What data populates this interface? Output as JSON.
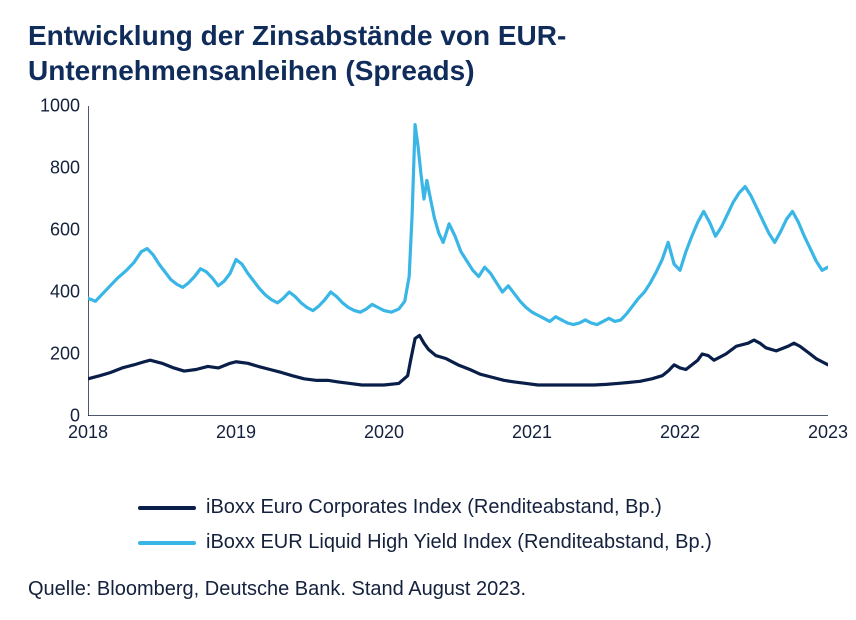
{
  "title": "Entwicklung der Zinsabstände von EUR-Unternehmensanleihen (Spreads)",
  "source": "Quelle: Bloomberg, Deutsche Bank. Stand August 2023.",
  "chart": {
    "type": "line",
    "background_color": "#ffffff",
    "axis_color": "#14213d",
    "title_color": "#0f2c5a",
    "title_fontsize": 28,
    "label_fontsize": 18,
    "legend_fontsize": 20,
    "x": {
      "min": 2018,
      "max": 2023,
      "ticks": [
        2018,
        2019,
        2020,
        2021,
        2022,
        2023
      ]
    },
    "y": {
      "min": 0,
      "max": 1000,
      "ticks": [
        0,
        200,
        400,
        600,
        800,
        1000
      ]
    },
    "series": [
      {
        "name": "iBoxx Euro Corporates Index (Renditeabstand, Bp.)",
        "color": "#0a1e4a",
        "stroke_width": 3.2,
        "data": [
          [
            2018.0,
            120
          ],
          [
            2018.08,
            130
          ],
          [
            2018.15,
            140
          ],
          [
            2018.23,
            155
          ],
          [
            2018.31,
            165
          ],
          [
            2018.38,
            175
          ],
          [
            2018.42,
            180
          ],
          [
            2018.5,
            170
          ],
          [
            2018.58,
            155
          ],
          [
            2018.65,
            145
          ],
          [
            2018.73,
            150
          ],
          [
            2018.81,
            160
          ],
          [
            2018.88,
            155
          ],
          [
            2018.96,
            170
          ],
          [
            2019.0,
            175
          ],
          [
            2019.08,
            170
          ],
          [
            2019.15,
            160
          ],
          [
            2019.23,
            150
          ],
          [
            2019.31,
            140
          ],
          [
            2019.38,
            130
          ],
          [
            2019.46,
            120
          ],
          [
            2019.54,
            115
          ],
          [
            2019.62,
            115
          ],
          [
            2019.69,
            110
          ],
          [
            2019.77,
            105
          ],
          [
            2019.85,
            100
          ],
          [
            2019.92,
            100
          ],
          [
            2020.0,
            100
          ],
          [
            2020.1,
            105
          ],
          [
            2020.16,
            130
          ],
          [
            2020.18,
            180
          ],
          [
            2020.21,
            250
          ],
          [
            2020.24,
            260
          ],
          [
            2020.27,
            235
          ],
          [
            2020.3,
            215
          ],
          [
            2020.35,
            195
          ],
          [
            2020.42,
            185
          ],
          [
            2020.5,
            165
          ],
          [
            2020.58,
            150
          ],
          [
            2020.65,
            135
          ],
          [
            2020.73,
            125
          ],
          [
            2020.81,
            115
          ],
          [
            2020.88,
            110
          ],
          [
            2020.96,
            105
          ],
          [
            2021.04,
            100
          ],
          [
            2021.12,
            100
          ],
          [
            2021.19,
            100
          ],
          [
            2021.27,
            100
          ],
          [
            2021.35,
            100
          ],
          [
            2021.42,
            100
          ],
          [
            2021.5,
            102
          ],
          [
            2021.58,
            105
          ],
          [
            2021.65,
            108
          ],
          [
            2021.73,
            112
          ],
          [
            2021.81,
            120
          ],
          [
            2021.88,
            130
          ],
          [
            2021.92,
            145
          ],
          [
            2021.96,
            165
          ],
          [
            2022.0,
            155
          ],
          [
            2022.04,
            150
          ],
          [
            2022.12,
            180
          ],
          [
            2022.15,
            200
          ],
          [
            2022.19,
            195
          ],
          [
            2022.23,
            180
          ],
          [
            2022.31,
            200
          ],
          [
            2022.38,
            225
          ],
          [
            2022.46,
            235
          ],
          [
            2022.5,
            245
          ],
          [
            2022.54,
            235
          ],
          [
            2022.58,
            220
          ],
          [
            2022.65,
            210
          ],
          [
            2022.73,
            225
          ],
          [
            2022.77,
            235
          ],
          [
            2022.81,
            225
          ],
          [
            2022.88,
            200
          ],
          [
            2022.92,
            185
          ],
          [
            2022.96,
            175
          ],
          [
            2023.0,
            165
          ]
        ]
      },
      {
        "name": "iBoxx EUR Liquid High Yield Index (Renditeabstand, Bp.)",
        "color": "#39b6e6",
        "stroke_width": 3.2,
        "data": [
          [
            2018.0,
            380
          ],
          [
            2018.05,
            370
          ],
          [
            2018.1,
            395
          ],
          [
            2018.15,
            420
          ],
          [
            2018.2,
            445
          ],
          [
            2018.26,
            470
          ],
          [
            2018.31,
            495
          ],
          [
            2018.36,
            530
          ],
          [
            2018.4,
            540
          ],
          [
            2018.44,
            520
          ],
          [
            2018.48,
            490
          ],
          [
            2018.52,
            465
          ],
          [
            2018.56,
            440
          ],
          [
            2018.6,
            425
          ],
          [
            2018.64,
            415
          ],
          [
            2018.68,
            430
          ],
          [
            2018.72,
            450
          ],
          [
            2018.76,
            475
          ],
          [
            2018.8,
            465
          ],
          [
            2018.84,
            445
          ],
          [
            2018.88,
            420
          ],
          [
            2018.92,
            435
          ],
          [
            2018.96,
            460
          ],
          [
            2019.0,
            505
          ],
          [
            2019.04,
            490
          ],
          [
            2019.08,
            460
          ],
          [
            2019.12,
            435
          ],
          [
            2019.16,
            410
          ],
          [
            2019.2,
            390
          ],
          [
            2019.24,
            375
          ],
          [
            2019.28,
            365
          ],
          [
            2019.32,
            380
          ],
          [
            2019.36,
            400
          ],
          [
            2019.4,
            385
          ],
          [
            2019.44,
            365
          ],
          [
            2019.48,
            350
          ],
          [
            2019.52,
            340
          ],
          [
            2019.56,
            355
          ],
          [
            2019.6,
            375
          ],
          [
            2019.64,
            400
          ],
          [
            2019.68,
            385
          ],
          [
            2019.72,
            365
          ],
          [
            2019.76,
            350
          ],
          [
            2019.8,
            340
          ],
          [
            2019.84,
            335
          ],
          [
            2019.88,
            345
          ],
          [
            2019.92,
            360
          ],
          [
            2019.96,
            350
          ],
          [
            2020.0,
            340
          ],
          [
            2020.05,
            335
          ],
          [
            2020.1,
            345
          ],
          [
            2020.14,
            370
          ],
          [
            2020.17,
            450
          ],
          [
            2020.19,
            650
          ],
          [
            2020.21,
            940
          ],
          [
            2020.23,
            870
          ],
          [
            2020.25,
            780
          ],
          [
            2020.27,
            700
          ],
          [
            2020.29,
            760
          ],
          [
            2020.31,
            710
          ],
          [
            2020.34,
            640
          ],
          [
            2020.37,
            590
          ],
          [
            2020.4,
            560
          ],
          [
            2020.44,
            620
          ],
          [
            2020.48,
            580
          ],
          [
            2020.52,
            530
          ],
          [
            2020.56,
            500
          ],
          [
            2020.6,
            470
          ],
          [
            2020.64,
            450
          ],
          [
            2020.68,
            480
          ],
          [
            2020.72,
            460
          ],
          [
            2020.76,
            430
          ],
          [
            2020.8,
            400
          ],
          [
            2020.84,
            420
          ],
          [
            2020.88,
            395
          ],
          [
            2020.92,
            370
          ],
          [
            2020.96,
            350
          ],
          [
            2021.0,
            335
          ],
          [
            2021.04,
            325
          ],
          [
            2021.08,
            315
          ],
          [
            2021.12,
            305
          ],
          [
            2021.16,
            320
          ],
          [
            2021.2,
            310
          ],
          [
            2021.24,
            300
          ],
          [
            2021.28,
            295
          ],
          [
            2021.32,
            300
          ],
          [
            2021.36,
            310
          ],
          [
            2021.4,
            300
          ],
          [
            2021.44,
            295
          ],
          [
            2021.48,
            305
          ],
          [
            2021.52,
            315
          ],
          [
            2021.56,
            305
          ],
          [
            2021.6,
            310
          ],
          [
            2021.64,
            330
          ],
          [
            2021.68,
            355
          ],
          [
            2021.72,
            380
          ],
          [
            2021.76,
            400
          ],
          [
            2021.8,
            430
          ],
          [
            2021.84,
            465
          ],
          [
            2021.88,
            505
          ],
          [
            2021.92,
            560
          ],
          [
            2021.96,
            490
          ],
          [
            2022.0,
            470
          ],
          [
            2022.04,
            530
          ],
          [
            2022.08,
            580
          ],
          [
            2022.12,
            625
          ],
          [
            2022.16,
            660
          ],
          [
            2022.2,
            625
          ],
          [
            2022.24,
            580
          ],
          [
            2022.28,
            610
          ],
          [
            2022.32,
            650
          ],
          [
            2022.36,
            690
          ],
          [
            2022.4,
            720
          ],
          [
            2022.44,
            740
          ],
          [
            2022.48,
            710
          ],
          [
            2022.52,
            670
          ],
          [
            2022.56,
            630
          ],
          [
            2022.6,
            590
          ],
          [
            2022.64,
            560
          ],
          [
            2022.68,
            595
          ],
          [
            2022.72,
            635
          ],
          [
            2022.76,
            660
          ],
          [
            2022.8,
            625
          ],
          [
            2022.84,
            580
          ],
          [
            2022.88,
            540
          ],
          [
            2022.92,
            500
          ],
          [
            2022.96,
            470
          ],
          [
            2023.0,
            480
          ]
        ]
      }
    ],
    "legend": {
      "position": "bottom",
      "items": [
        {
          "label": "iBoxx Euro Corporates Index (Renditeabstand, Bp.)",
          "color": "#0a1e4a"
        },
        {
          "label": "iBoxx EUR Liquid High Yield Index (Renditeabstand, Bp.)",
          "color": "#39b6e6"
        }
      ]
    }
  }
}
